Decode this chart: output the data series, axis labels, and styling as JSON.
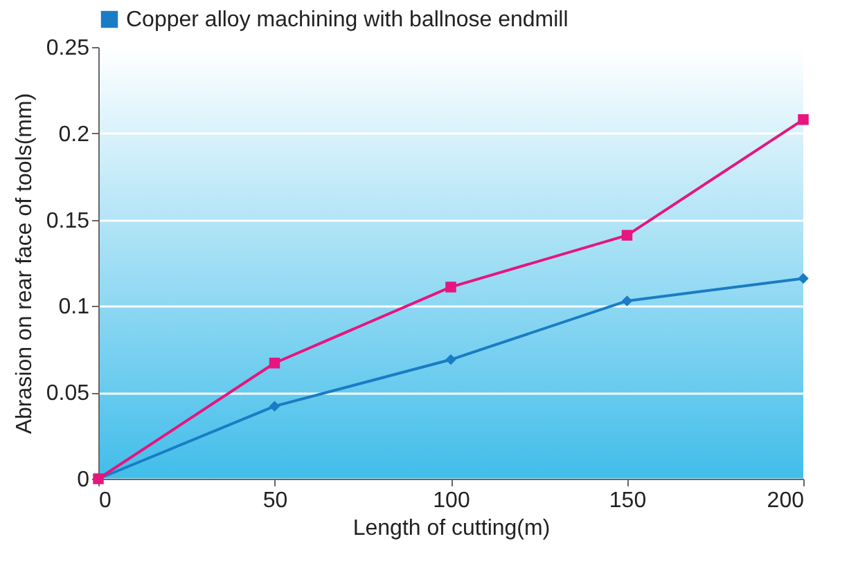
{
  "chart_data": {
    "type": "line",
    "xlabel": "Length of cutting(m)",
    "ylabel": "Abrasion on rear face of tools(mm)",
    "x": [
      0,
      50,
      100,
      150,
      200
    ],
    "series": [
      {
        "name": "Copper alloy machining with ballnose endmill",
        "color": "#1a7cc4",
        "marker": "diamond",
        "values": [
          0,
          0.042,
          0.069,
          0.103,
          0.116
        ]
      },
      {
        "color": "#e6157f",
        "marker": "square",
        "values": [
          0,
          0.067,
          0.111,
          0.141,
          0.208
        ]
      }
    ],
    "xlim": [
      0,
      200
    ],
    "xticks": [
      0,
      50,
      100,
      150,
      200
    ],
    "ylim": [
      0,
      0.25
    ],
    "yticks": [
      0,
      0.05,
      0.1,
      0.15,
      0.2,
      0.25
    ],
    "grid": "y",
    "legend": "top"
  }
}
